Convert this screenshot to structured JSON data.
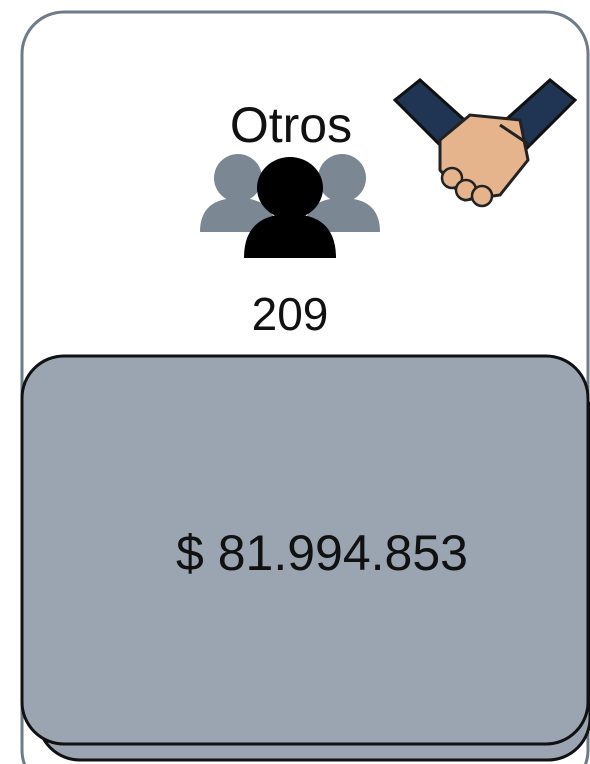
{
  "card": {
    "title": "Otros",
    "count": "209",
    "amount": "$ 81.994.853"
  }
}
